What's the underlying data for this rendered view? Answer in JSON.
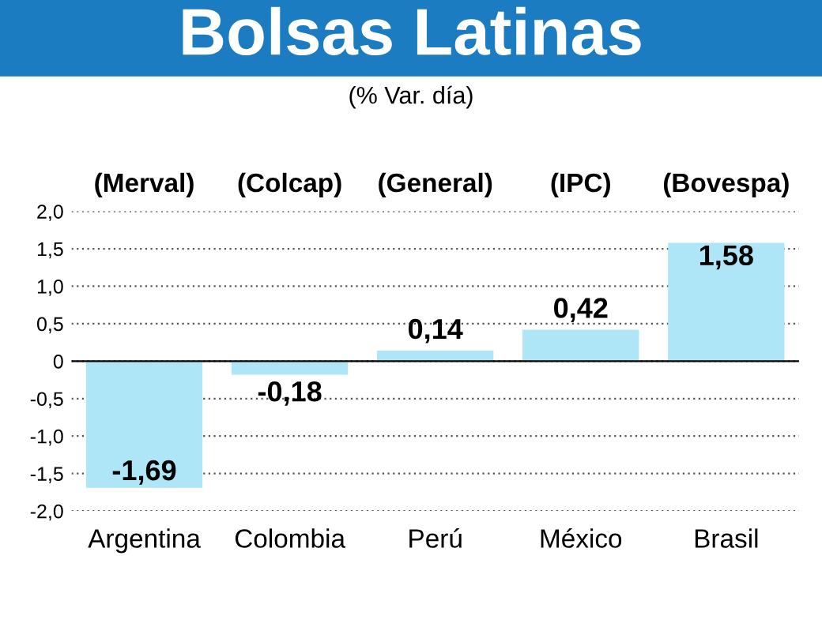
{
  "chart_data": {
    "type": "bar",
    "title": "Bolsas Latinas",
    "subtitle": "(% Var. día)",
    "categories": [
      "Argentina",
      "Colombia",
      "Perú",
      "México",
      "Brasil"
    ],
    "values": [
      -1.69,
      -0.18,
      0.14,
      0.42,
      1.58
    ],
    "value_labels": [
      "-1,69",
      "-0,18",
      "0,14",
      "0,42",
      "1,58"
    ],
    "color": "#aee6f7",
    "annotations": [
      "(Merval)",
      "(Colcap)",
      "(General)",
      "(IPC)",
      "(Bovespa)"
    ],
    "ylim": [
      -2.0,
      2.0
    ],
    "yticks": [
      {
        "value": -2.0,
        "label": "-2,0"
      },
      {
        "value": -1.5,
        "label": "-1,5"
      },
      {
        "value": -1.0,
        "label": "-1,0"
      },
      {
        "value": -0.5,
        "label": "-0,5"
      },
      0,
      {
        "value": 0.5,
        "label": "0,5"
      },
      {
        "value": 1.0,
        "label": "1,0"
      },
      {
        "value": 1.5,
        "label": "1,5"
      },
      {
        "value": 2.0,
        "label": "2,0"
      }
    ],
    "grid": "y"
  }
}
